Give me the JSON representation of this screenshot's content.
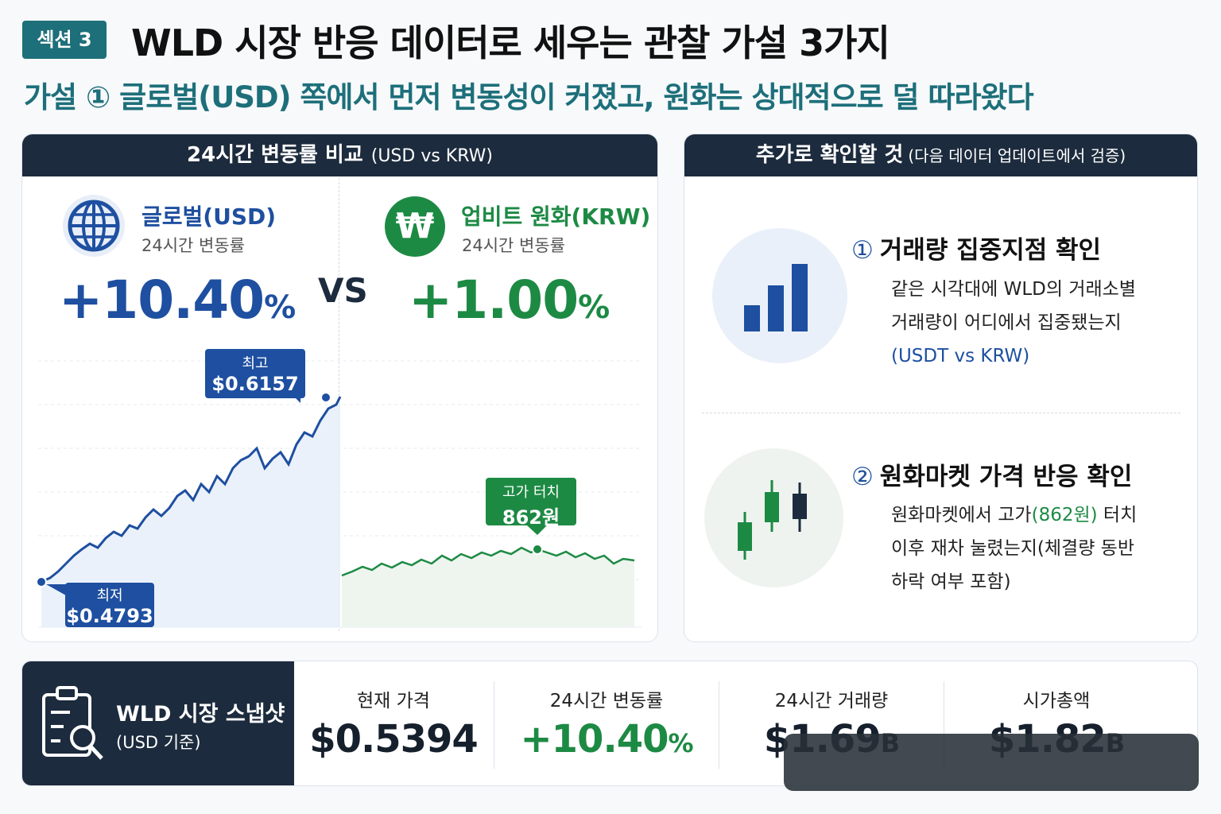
{
  "header": {
    "badge": "섹션 3",
    "title": "WLD 시장 반응 데이터로 세우는 관찰 가설 3가지",
    "subtitle": "가설 ① 글로벌(USD) 쪽에서 먼저 변동성이 커졌고, 원화는 상대적으로 덜 따라왔다"
  },
  "comparison": {
    "title": "24시간 변동률 비교",
    "title_note": "(USD vs KRW)",
    "vs": "VS",
    "usd": {
      "label": "글로벌(USD)",
      "sub": "24시간 변동률",
      "value": "+10.40",
      "pct": "%",
      "high_label": "최고",
      "high_value": "$0.6157",
      "low_label": "최저",
      "low_value": "$0.4793",
      "color": "#1e4fa0"
    },
    "krw": {
      "label": "업비트 원화(KRW)",
      "sub": "24시간 변동률",
      "value": "+1.00",
      "pct": "%",
      "high_label": "고가 터치",
      "high_value": "862원",
      "color": "#1d8a44"
    }
  },
  "checks": {
    "title": "추가로 확인할 것",
    "title_note": "(다음 데이터 업데이트에서 검증)",
    "items": [
      {
        "num": "①",
        "title": "거래량 집중지점 확인",
        "line1": "같은 시각대에 WLD의 거래소별",
        "line2": "거래량이 어디에서 집중됐는지",
        "line3": "(USDT vs KRW)",
        "icon": "bar-chart-icon"
      },
      {
        "num": "②",
        "title": "원화마켓 가격 반응 확인",
        "line1_a": "원화마켓에서 고가",
        "line1_b": "(862원)",
        "line1_c": " 터치",
        "line2": "이후 재차 눌렸는지(체결량 동반",
        "line3": "하락 여부 포함)",
        "icon": "candlestick-icon"
      }
    ]
  },
  "snapshot": {
    "title": "WLD 시장 스냅샷",
    "sub": "(USD 기준)",
    "metrics": [
      {
        "label": "현재 가격",
        "value": "$0.5394",
        "unit": ""
      },
      {
        "label": "24시간 변동률",
        "value": "+10.40",
        "unit": "%"
      },
      {
        "label": "24시간 거래량",
        "value": "$1.69",
        "unit": "B"
      },
      {
        "label": "시가총액",
        "value": "$1.82",
        "unit": "B"
      }
    ]
  }
}
